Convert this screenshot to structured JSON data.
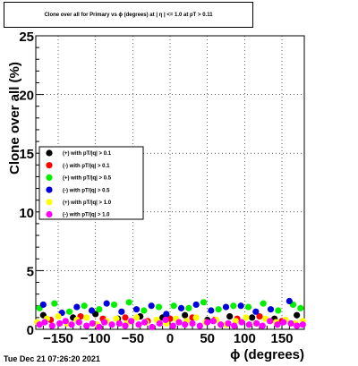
{
  "chart_data": {
    "type": "scatter",
    "title": "Clone  over all for Primary vs ϕ (degrees) at | η | <= 1.0 at pT > 0.11",
    "xlabel": "ϕ (degrees)",
    "ylabel": "Clone  over all (%)",
    "xlim": [
      -180,
      180
    ],
    "ylim": [
      0,
      25
    ],
    "x_ticks": [
      -150,
      -100,
      -50,
      0,
      50,
      100,
      150
    ],
    "x_tick_labels": [
      "−150",
      "−100",
      "−50",
      "0",
      "50",
      "100",
      "150"
    ],
    "y_ticks": [
      0,
      5,
      10,
      15,
      20,
      25
    ],
    "y_tick_labels": [
      "0",
      "5",
      "10",
      "15",
      "20",
      "25"
    ],
    "grid": true,
    "legend_position": "left-middle",
    "series": [
      {
        "name": "(+) with pT/|q| > 0.1",
        "color": "#000000",
        "x": [
          -170,
          -130,
          -100,
          -70,
          -40,
          -10,
          20,
          50,
          80,
          110,
          140,
          170
        ],
        "y": [
          1.2,
          1.0,
          1.3,
          0.9,
          1.1,
          1.0,
          1.2,
          0.8,
          1.1,
          1.0,
          0.9,
          1.2
        ]
      },
      {
        "name": "(-) with pT/|q| > 0.1",
        "color": "#ff0000",
        "x": [
          -160,
          -120,
          -90,
          -60,
          -30,
          0,
          30,
          60,
          90,
          120,
          150
        ],
        "y": [
          0.8,
          1.1,
          0.9,
          1.0,
          0.7,
          0.9,
          1.0,
          0.8,
          0.9,
          1.1,
          0.7
        ]
      },
      {
        "name": "(+) with pT/|q| > 0.5",
        "color": "#00ee00",
        "x": [
          -175,
          -155,
          -135,
          -115,
          -95,
          -75,
          -55,
          -35,
          -15,
          5,
          25,
          45,
          65,
          85,
          105,
          125,
          145,
          165,
          175
        ],
        "y": [
          1.8,
          2.2,
          1.5,
          2.0,
          1.7,
          2.1,
          2.3,
          1.6,
          1.9,
          2.0,
          1.8,
          2.3,
          1.7,
          2.0,
          1.9,
          2.2,
          1.6,
          2.1,
          1.8
        ]
      },
      {
        "name": "(-) with pT/|q| > 0.5",
        "color": "#0000dd",
        "x": [
          -170,
          -145,
          -125,
          -105,
          -85,
          -65,
          -45,
          -25,
          -5,
          15,
          35,
          55,
          75,
          95,
          115,
          135,
          160
        ],
        "y": [
          2.1,
          1.4,
          1.9,
          1.6,
          2.2,
          1.5,
          1.7,
          2.0,
          1.3,
          1.8,
          2.1,
          1.6,
          1.9,
          2.0,
          1.5,
          1.7,
          2.4
        ]
      },
      {
        "name": "(+) with pT/|q| > 1.0",
        "color": "#ffff00",
        "x": [
          -178,
          -165,
          -150,
          -138,
          -125,
          -112,
          -98,
          -85,
          -72,
          -58,
          -45,
          -32,
          -18,
          -5,
          8,
          22,
          35,
          48,
          62,
          75,
          88,
          102,
          115,
          128,
          142,
          155,
          168,
          178
        ],
        "y": [
          0.6,
          0.9,
          1.1,
          0.5,
          0.8,
          1.0,
          0.4,
          0.7,
          0.9,
          0.5,
          1.0,
          0.6,
          0.8,
          0.5,
          0.9,
          0.7,
          1.0,
          0.6,
          0.8,
          0.4,
          0.7,
          1.0,
          0.5,
          0.9,
          0.6,
          0.8,
          0.5,
          0.7
        ]
      },
      {
        "name": "(-) with pT/|q| > 1.0",
        "color": "#ff00ff",
        "x": [
          -175,
          -168,
          -158,
          -148,
          -140,
          -132,
          -122,
          -112,
          -104,
          -95,
          -88,
          -78,
          -68,
          -60,
          -52,
          -42,
          -34,
          -24,
          -14,
          -6,
          4,
          12,
          20,
          30,
          40,
          50,
          58,
          68,
          78,
          86,
          96,
          106,
          116,
          124,
          134,
          144,
          152,
          162,
          170,
          178
        ],
        "y": [
          0.4,
          0.6,
          0.3,
          0.5,
          0.7,
          0.4,
          0.6,
          0.3,
          0.5,
          0.2,
          0.6,
          0.4,
          0.5,
          0.3,
          0.7,
          0.4,
          0.6,
          0.2,
          0.5,
          0.8,
          0.3,
          0.6,
          0.4,
          0.5,
          0.3,
          0.6,
          0.7,
          0.4,
          0.5,
          0.3,
          0.6,
          0.4,
          0.5,
          0.3,
          0.7,
          0.4,
          0.6,
          0.5,
          0.3,
          0.4
        ]
      }
    ]
  },
  "datestamp": "Tue Dec 21 07:26:20 2021"
}
